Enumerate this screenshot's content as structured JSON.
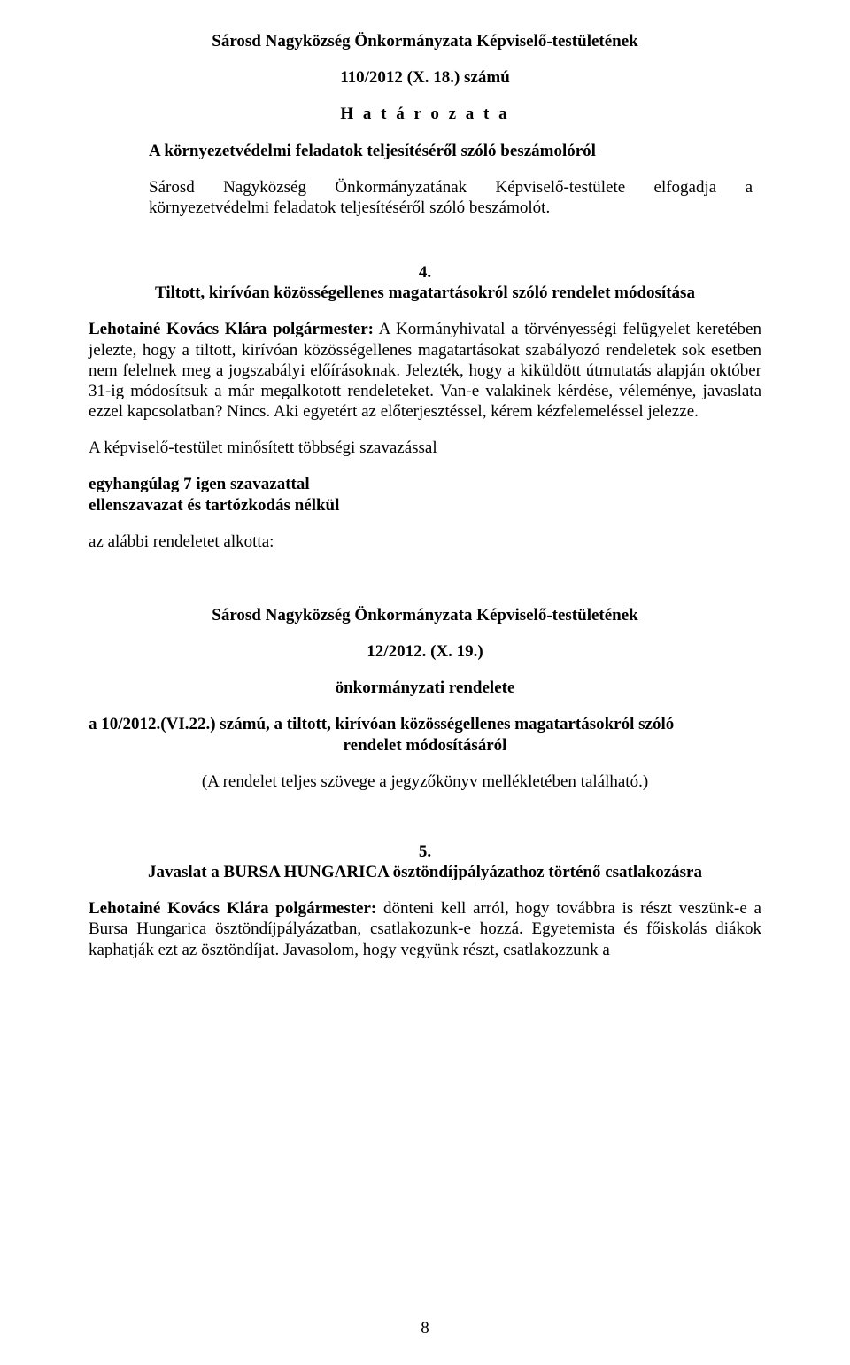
{
  "colors": {
    "background": "#ffffff",
    "text": "#000000"
  },
  "typography": {
    "font_family": "Times New Roman",
    "body_fontsize_pt": 14,
    "bold_weight": 700
  },
  "header": {
    "org_title": "Sárosd Nagyközség Önkormányzata Képviselő-testületének",
    "decision_no": "110/2012 (X. 18.) számú",
    "decision_word": "H a t á r o z a t a",
    "subject": "A környezetvédelmi feladatok teljesítéséről szóló beszámolóról",
    "body": "Sárosd Nagyközség Önkormányzatának Képviselő-testülete elfogadja a környezetvédelmi feladatok teljesítéséről szóló beszámolót."
  },
  "section4": {
    "number": "4.",
    "title": "Tiltott, kirívóan közösségellenes magatartásokról szóló rendelet módosítása",
    "speaker": "Lehotainé Kovács Klára polgármester:",
    "speaker_text": " A Kormányhivatal a törvényességi felügyelet keretében jelezte, hogy a tiltott, kirívóan közösségellenes magatartásokat szabályozó rendeletek sok esetben nem felelnek meg a jogszabályi előírásoknak. Jelezték, hogy a kiküldött útmutatás alapján október 31-ig módosítsuk a már megalkotott rendeleteket. Van-e valakinek kérdése, véleménye, javaslata ezzel kapcsolatban? Nincs. Aki egyetért az előterjesztéssel, kérem kézfelemeléssel jelezze.",
    "vote_intro": "A képviselő-testület minősített többségi szavazással",
    "vote_line1": "egyhangúlag 7 igen szavazattal",
    "vote_line2": "ellenszavazat és tartózkodás nélkül",
    "result_line": "az alábbi rendeletet alkotta:"
  },
  "resolution": {
    "org_title": "Sárosd Nagyközség Önkormányzata Képviselő-testületének",
    "number": "12/2012. (X. 19.)",
    "type": "önkormányzati rendelete",
    "about_line1": "a 10/2012.(VI.22.) számú, a tiltott, kirívóan közösségellenes magatartásokról szóló",
    "about_line2": "rendelet módosításáról",
    "note": "(A rendelet teljes szövege a jegyzőkönyv mellékletében található.)"
  },
  "section5": {
    "number": "5.",
    "title": "Javaslat a BURSA HUNGARICA ösztöndíjpályázathoz történő csatlakozásra",
    "speaker": "Lehotainé Kovács Klára polgármester:",
    "speaker_text": " dönteni kell arról, hogy továbbra is részt veszünk-e a Bursa Hungarica ösztöndíjpályázatban, csatlakozunk-e hozzá. Egyetemista és főiskolás diákok kaphatják ezt az ösztöndíjat. Javasolom, hogy vegyünk részt, csatlakozzunk a"
  },
  "page_number": "8"
}
